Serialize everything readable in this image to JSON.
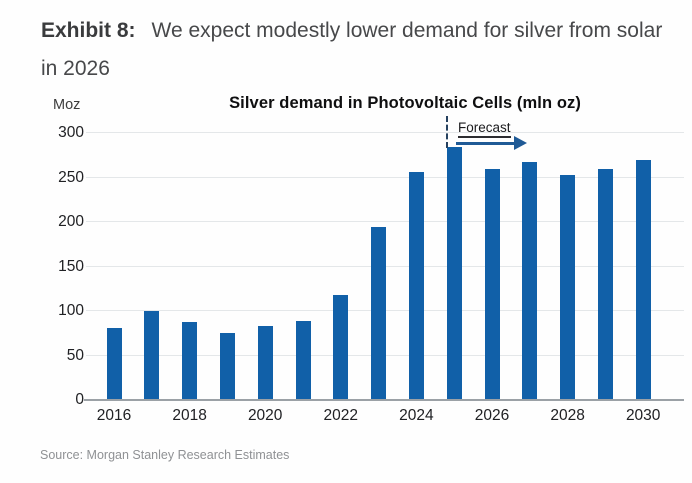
{
  "exhibit": {
    "label": "Exhibit 8:",
    "title": "We expect modestly lower demand for silver from solar in 2026"
  },
  "chart_data": {
    "type": "bar",
    "title": "Silver demand in Photovoltaic Cells (mln oz)",
    "ylabel": "Moz",
    "xlabel": "",
    "categories": [
      "2016",
      "2017",
      "2018",
      "2019",
      "2020",
      "2021",
      "2022",
      "2023",
      "2024",
      "2025",
      "2026",
      "2027",
      "2028",
      "2029",
      "2030"
    ],
    "values": [
      80,
      99,
      86,
      74,
      82,
      88,
      117,
      193,
      255,
      283,
      258,
      266,
      252,
      258,
      268
    ],
    "x_tick_labels": [
      "2016",
      "2018",
      "2020",
      "2022",
      "2024",
      "2026",
      "2028",
      "2030"
    ],
    "y_ticks": [
      0,
      50,
      100,
      150,
      200,
      250,
      300
    ],
    "ylim": [
      0,
      300
    ],
    "grid": true,
    "legend": false,
    "annotation": {
      "label": "Forecast",
      "at_category": "2025",
      "style": "dashed-vertical-line-with-right-arrow"
    },
    "colors": {
      "bar": "#1160a8",
      "arrow": "#1f5a96",
      "dashed_line": "#26415f",
      "gridline": "#e4e7e9",
      "axis_line": "#9ba1a6"
    }
  },
  "source": "Source: Morgan Stanley Research Estimates"
}
